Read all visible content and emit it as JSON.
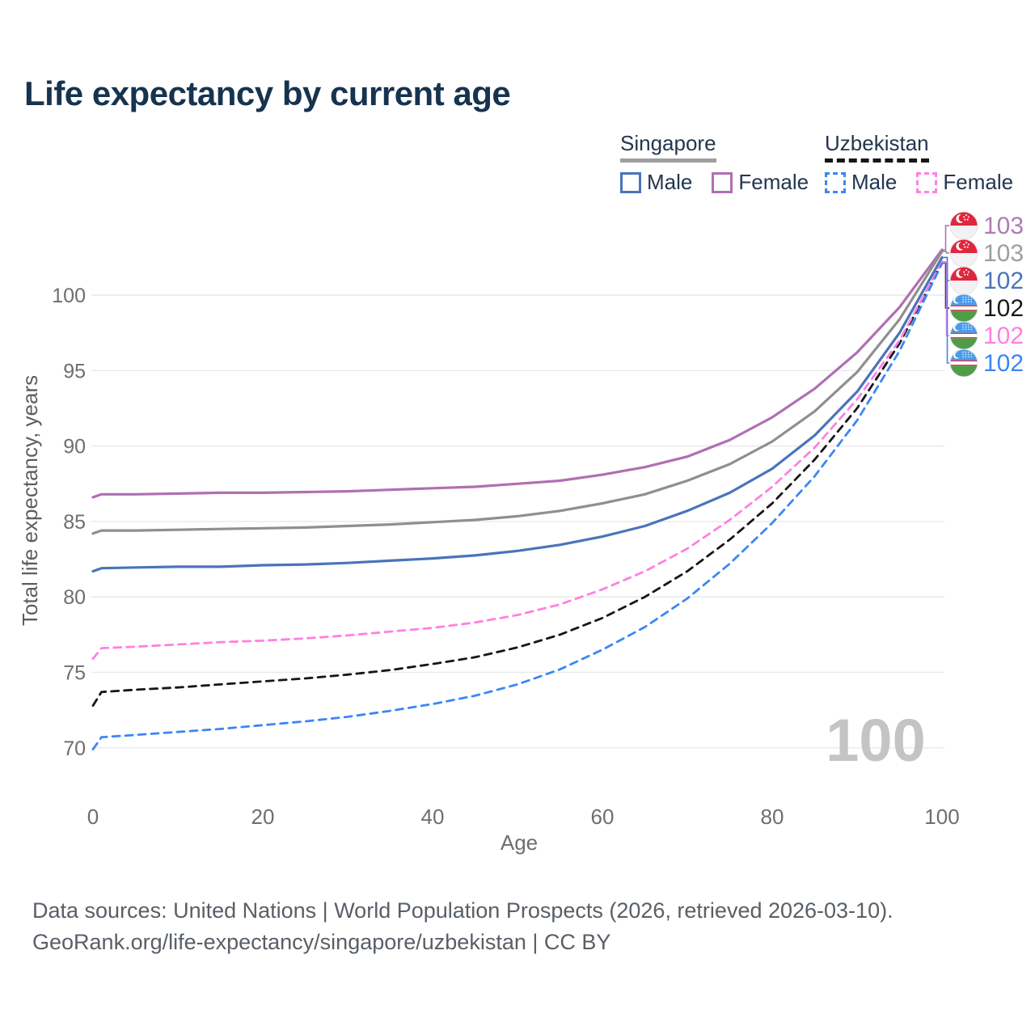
{
  "title": "Life expectancy by current age",
  "legend": {
    "groups": [
      {
        "label": "Singapore",
        "line_style": "solid",
        "underline_color": "#9e9e9e",
        "items": [
          {
            "label": "Male",
            "color": "#4a74ba"
          },
          {
            "label": "Female",
            "color": "#b06fb3"
          }
        ]
      },
      {
        "label": "Uzbekistan",
        "line_style": "dashed",
        "underline_color": "#161616",
        "items": [
          {
            "label": "Male",
            "color": "#3b87f5"
          },
          {
            "label": "Female",
            "color": "#ff80e0"
          }
        ]
      }
    ]
  },
  "chart_data": {
    "type": "line",
    "title": "Life expectancy by current age",
    "xlabel": "Age",
    "ylabel": "Total life expectancy, years",
    "xticks": [
      0,
      20,
      40,
      60,
      80,
      100
    ],
    "yticks": [
      70,
      75,
      80,
      85,
      90,
      95,
      100
    ],
    "xlim": [
      0,
      100
    ],
    "ylim": [
      67,
      104.5
    ],
    "grid": "horizontal",
    "legend_position": "top-right",
    "watermark": "100",
    "x": [
      0,
      1,
      5,
      10,
      15,
      20,
      25,
      30,
      35,
      40,
      45,
      50,
      55,
      60,
      65,
      70,
      75,
      80,
      85,
      90,
      95,
      100
    ],
    "series": [
      {
        "name": "Singapore Female",
        "country": "Singapore",
        "sex": "Female",
        "color": "#b06fb3",
        "dash": "solid",
        "end_label": "103",
        "values": [
          86.6,
          86.8,
          86.8,
          86.85,
          86.9,
          86.9,
          86.95,
          87.0,
          87.1,
          87.2,
          87.3,
          87.5,
          87.7,
          88.1,
          88.6,
          89.3,
          90.4,
          91.9,
          93.8,
          96.2,
          99.2,
          103.0
        ]
      },
      {
        "name": "Singapore (both sexes)",
        "country": "Singapore",
        "sex": "Both",
        "color": "#8f8f8f",
        "dash": "solid",
        "end_label": "103",
        "values": [
          84.2,
          84.4,
          84.4,
          84.45,
          84.5,
          84.55,
          84.6,
          84.7,
          84.8,
          84.95,
          85.1,
          85.35,
          85.7,
          86.2,
          86.8,
          87.7,
          88.8,
          90.3,
          92.3,
          94.9,
          98.4,
          102.9
        ]
      },
      {
        "name": "Singapore Male",
        "country": "Singapore",
        "sex": "Male",
        "color": "#4a74ba",
        "dash": "solid",
        "end_label": "102",
        "values": [
          81.7,
          81.9,
          81.95,
          82.0,
          82.0,
          82.1,
          82.15,
          82.25,
          82.4,
          82.55,
          82.75,
          83.05,
          83.45,
          84.0,
          84.7,
          85.7,
          86.9,
          88.5,
          90.7,
          93.6,
          97.5,
          102.5
        ]
      },
      {
        "name": "Uzbekistan (both sexes)",
        "country": "Uzbekistan",
        "sex": "Both",
        "color": "#161616",
        "dash": "dashed",
        "end_label": "102",
        "values": [
          72.8,
          73.7,
          73.85,
          74.0,
          74.2,
          74.4,
          74.6,
          74.85,
          75.15,
          75.55,
          76.0,
          76.65,
          77.5,
          78.6,
          80.0,
          81.7,
          83.8,
          86.2,
          89.1,
          92.5,
          96.8,
          102.2
        ]
      },
      {
        "name": "Uzbekistan Female",
        "country": "Uzbekistan",
        "sex": "Female",
        "color": "#ff80e0",
        "dash": "dashed",
        "end_label": "102",
        "values": [
          75.9,
          76.6,
          76.7,
          76.85,
          77.0,
          77.1,
          77.25,
          77.45,
          77.7,
          77.95,
          78.3,
          78.8,
          79.5,
          80.5,
          81.7,
          83.2,
          85.1,
          87.3,
          89.9,
          93.1,
          97.0,
          102.2
        ]
      },
      {
        "name": "Uzbekistan Male",
        "country": "Uzbekistan",
        "sex": "Male",
        "color": "#3b87f5",
        "dash": "dashed",
        "end_label": "102",
        "values": [
          69.9,
          70.7,
          70.85,
          71.05,
          71.25,
          71.5,
          71.75,
          72.05,
          72.45,
          72.9,
          73.45,
          74.2,
          75.2,
          76.5,
          78.0,
          79.9,
          82.2,
          84.9,
          88.0,
          91.7,
          96.3,
          102.1
        ]
      }
    ],
    "end_labels": [
      {
        "value": "103",
        "flag": "singapore",
        "color": "#b07ab5",
        "series": 0
      },
      {
        "value": "103",
        "flag": "singapore",
        "color": "#9e9e9e",
        "series": 1
      },
      {
        "value": "102",
        "flag": "singapore",
        "color": "#4a74ba",
        "series": 2
      },
      {
        "value": "102",
        "flag": "uzbekistan",
        "color": "#1a1a1a",
        "series": 3
      },
      {
        "value": "102",
        "flag": "uzbekistan",
        "color": "#ff80e0",
        "series": 4
      },
      {
        "value": "102",
        "flag": "uzbekistan",
        "color": "#3b87f5",
        "series": 5
      }
    ]
  },
  "footer": {
    "line1": "Data sources: United Nations | World Population Prospects (2026, retrieved 2026-03-10).",
    "line2": "GeoRank.org/life-expectancy/singapore/uzbekistan | CC BY"
  },
  "colors": {
    "title_text": "#16334f",
    "legend_text": "#22364e",
    "tick_text": "#6e6e6e",
    "axis_title_text": "#5d5d5d",
    "gridline": "#e9e9e9",
    "watermark": "#c4c4c4",
    "footer_text": "#585f66",
    "flag_singapore_red": "#e0263d",
    "flag_uzbekistan_blue": "#4a9ceb",
    "flag_uzbekistan_green": "#4f9d49",
    "flag_uzbekistan_red": "#d8404d"
  }
}
